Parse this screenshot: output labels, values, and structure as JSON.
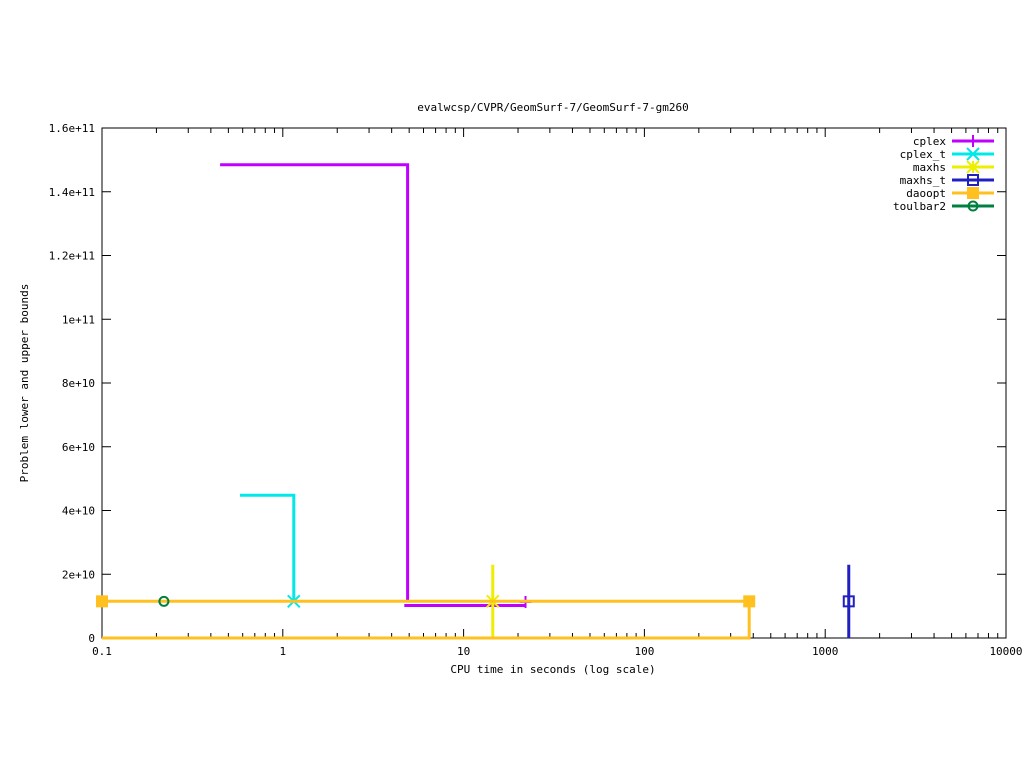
{
  "chart_data": {
    "type": "line",
    "title": "evalwcsp/CVPR/GeomSurf-7/GeomSurf-7-gm260",
    "xlabel": "CPU time in seconds (log scale)",
    "ylabel": "Problem lower and upper bounds",
    "xscale": "log",
    "xlim": [
      0.1,
      10000
    ],
    "ylim": [
      0,
      160000000000
    ],
    "x_ticks": [
      0.1,
      1,
      10,
      100,
      1000,
      10000
    ],
    "x_tick_labels": [
      "0.1",
      "1",
      "10",
      "100",
      "1000",
      "10000"
    ],
    "y_ticks": [
      0,
      20000000000,
      40000000000,
      60000000000,
      80000000000,
      100000000000,
      120000000000,
      140000000000,
      160000000000
    ],
    "y_tick_labels": [
      "0",
      "2e+10",
      "4e+10",
      "6e+10",
      "8e+10",
      "1e+11",
      "1.2e+11",
      "1.4e+11",
      "1.6e+11"
    ],
    "legend_position": "top-right",
    "grid": false,
    "series": [
      {
        "name": "cplex",
        "color": "#c000ff",
        "marker": "plus",
        "upper": [
          [
            0.45,
            148500000000
          ],
          [
            4.9,
            148500000000
          ],
          [
            4.9,
            11300000000
          ]
        ],
        "lower": [
          [
            4.7,
            10200000000
          ],
          [
            22,
            10200000000
          ]
        ],
        "markers": [
          [
            22,
            11300000000
          ]
        ]
      },
      {
        "name": "cplex_t",
        "color": "#00e8e8",
        "marker": "x",
        "upper": [
          [
            0.58,
            44800000000
          ],
          [
            1.15,
            44800000000
          ],
          [
            1.15,
            11500000000
          ]
        ],
        "markers": [
          [
            1.15,
            11500000000
          ]
        ]
      },
      {
        "name": "maxhs",
        "color": "#eeee00",
        "marker": "star",
        "upper": [],
        "markers": [
          [
            14.5,
            11500000000
          ]
        ],
        "errorbar": [
          [
            14.5,
            0,
            23000000000
          ]
        ]
      },
      {
        "name": "maxhs_t",
        "color": "#2020c0",
        "marker": "square-open",
        "upper": [],
        "markers": [
          [
            1350,
            11500000000
          ]
        ],
        "errorbar": [
          [
            1350,
            0,
            23000000000
          ]
        ]
      },
      {
        "name": "daoopt",
        "color": "#ffc020",
        "marker": "square-filled",
        "upper": [
          [
            0.1,
            11500000000
          ],
          [
            380,
            11500000000
          ]
        ],
        "lower": [
          [
            0.1,
            0
          ],
          [
            380,
            0
          ],
          [
            380,
            11500000000
          ]
        ],
        "markers": [
          [
            0.1,
            11500000000
          ],
          [
            380,
            11500000000
          ]
        ]
      },
      {
        "name": "toulbar2",
        "color": "#008040",
        "marker": "circle-open",
        "upper": [],
        "markers": [
          [
            0.22,
            11500000000
          ]
        ]
      }
    ]
  }
}
